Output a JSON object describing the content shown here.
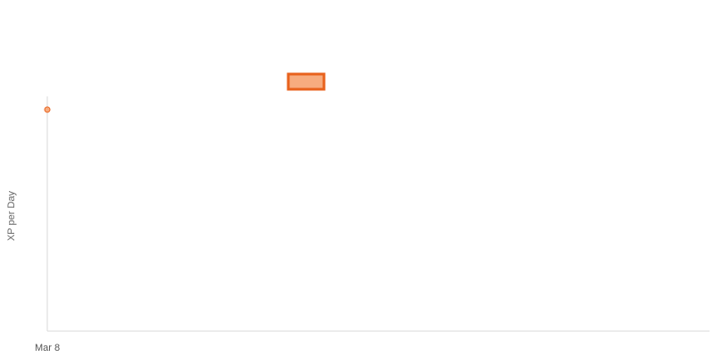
{
  "chart_data": {
    "type": "line",
    "title": "",
    "xlabel": "",
    "ylabel": "XP per Day",
    "x": [
      "Mar 8"
    ],
    "series": [
      {
        "values": [
          100
        ]
      }
    ],
    "x_tick_labels": [
      "Mar 8"
    ],
    "ylim": [
      0,
      110
    ],
    "grid": false,
    "legend": {
      "placement": "top-center",
      "marker": "rectangle",
      "label": ""
    },
    "colors": {
      "series": "#e8621d",
      "series_fill": "#f7ac7f",
      "axis": "#d9d9d9",
      "text": "#555555"
    }
  }
}
